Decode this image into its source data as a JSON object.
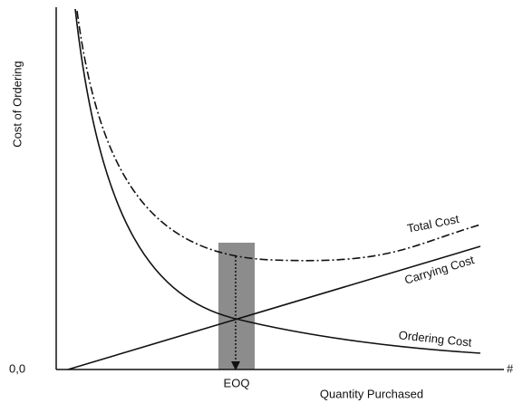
{
  "axes": {
    "y_label": "Cost of Ordering",
    "x_label": "Quantity Purchased",
    "origin": "0,0",
    "x_end": "#"
  },
  "marker": {
    "label": "EOQ"
  },
  "curves": [
    {
      "label": "Total Cost"
    },
    {
      "label": "Carrying Cost"
    },
    {
      "label": "Ordering Cost"
    }
  ]
}
